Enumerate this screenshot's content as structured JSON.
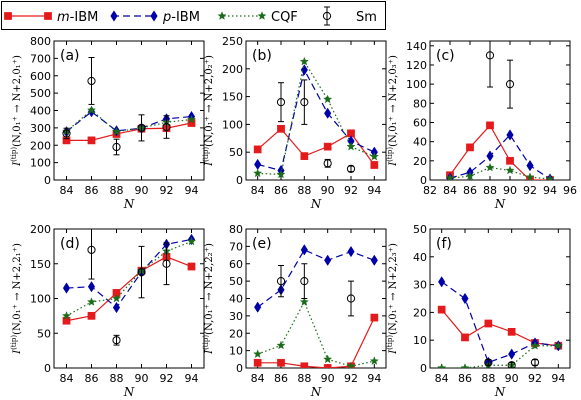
{
  "legend": [
    {
      "label": "m-IBM",
      "label_italic": "m",
      "label_rest": "-IBM",
      "color": "#e41a1c",
      "marker": "square",
      "line": "solid"
    },
    {
      "label": "p-IBM",
      "label_italic": "p",
      "label_rest": "-IBM",
      "color": "#0000aa",
      "marker": "diamond",
      "line": "dashed"
    },
    {
      "label": "CQF",
      "label_italic": "",
      "label_rest": "CQF",
      "color": "#1a6b1a",
      "marker": "star",
      "line": "dotted"
    },
    {
      "label": "Sm",
      "label_italic": "",
      "label_rest": "Sm",
      "color": "#000000",
      "marker": "circle-errorbar",
      "line": "none"
    }
  ],
  "chart_data": [
    {
      "panel": "(a)",
      "type": "line",
      "xlabel": "N",
      "ylabel_main": "I",
      "ylabel_sup": "(tip)",
      "ylabel_arg": "(N,0₁⁺ → N+2,0₁⁺)",
      "xlim": [
        83,
        95
      ],
      "ylim": [
        0,
        800
      ],
      "xticks": [
        84,
        86,
        88,
        90,
        92,
        94
      ],
      "yticks": [
        0,
        100,
        200,
        300,
        400,
        500,
        600,
        700,
        800
      ],
      "series": [
        {
          "name": "m-IBM",
          "x": [
            84,
            86,
            88,
            90,
            92,
            94
          ],
          "y": [
            228,
            228,
            265,
            295,
            298,
            328
          ]
        },
        {
          "name": "p-IBM",
          "x": [
            84,
            86,
            88,
            90,
            92,
            94
          ],
          "y": [
            278,
            393,
            283,
            298,
            352,
            365
          ]
        },
        {
          "name": "CQF",
          "x": [
            84,
            86,
            88,
            90,
            92,
            94
          ],
          "y": [
            280,
            402,
            278,
            300,
            332,
            348
          ]
        },
        {
          "name": "Sm",
          "x": [
            84,
            86,
            88,
            90,
            92
          ],
          "y": [
            268,
            570,
            190,
            300,
            305
          ],
          "err": [
            30,
            135,
            45,
            75,
            65
          ]
        }
      ]
    },
    {
      "panel": "(b)",
      "type": "line",
      "xlabel": "N",
      "ylabel_main": "I",
      "ylabel_sup": "(tip)",
      "ylabel_arg": "(N,0₁⁺ → N+2,0₂⁺)",
      "xlim": [
        83,
        95
      ],
      "ylim": [
        0,
        250
      ],
      "xticks": [
        84,
        86,
        88,
        90,
        92,
        94
      ],
      "yticks": [
        0,
        50,
        100,
        150,
        200,
        250
      ],
      "series": [
        {
          "name": "m-IBM",
          "x": [
            84,
            86,
            88,
            90,
            92,
            94
          ],
          "y": [
            55,
            92,
            43,
            60,
            84,
            27
          ]
        },
        {
          "name": "p-IBM",
          "x": [
            84,
            86,
            88,
            90,
            92,
            94
          ],
          "y": [
            28,
            17,
            198,
            120,
            70,
            50
          ]
        },
        {
          "name": "CQF",
          "x": [
            84,
            86,
            88,
            90,
            92,
            94
          ],
          "y": [
            12,
            10,
            213,
            145,
            60,
            42
          ]
        },
        {
          "name": "Sm",
          "x": [
            86,
            88,
            90,
            92
          ],
          "y": [
            140,
            140,
            30,
            20
          ],
          "err": [
            35,
            40,
            7,
            5
          ]
        }
      ]
    },
    {
      "panel": "(c)",
      "type": "line",
      "xlabel": "N",
      "ylabel_main": "I",
      "ylabel_sup": "(tip)",
      "ylabel_arg": "(N,0₁⁺ → N+2,0₃⁺)",
      "xlim": [
        82,
        96
      ],
      "ylim": [
        0,
        145
      ],
      "xticks": [
        82,
        84,
        86,
        88,
        90,
        92,
        94,
        96
      ],
      "yticks": [
        0,
        20,
        40,
        60,
        80,
        100,
        120,
        140
      ],
      "series": [
        {
          "name": "m-IBM",
          "x": [
            84,
            86,
            88,
            90,
            92,
            94
          ],
          "y": [
            5,
            34,
            57,
            20,
            0,
            0
          ]
        },
        {
          "name": "p-IBM",
          "x": [
            84,
            86,
            88,
            90,
            92,
            94
          ],
          "y": [
            2,
            8,
            25,
            47,
            15,
            1
          ]
        },
        {
          "name": "CQF",
          "x": [
            84,
            86,
            88,
            90,
            92,
            94
          ],
          "y": [
            2,
            4,
            13,
            10,
            3,
            1
          ]
        },
        {
          "name": "Sm",
          "x": [
            88,
            90
          ],
          "y": [
            130,
            100
          ],
          "err": [
            33,
            25
          ]
        }
      ]
    },
    {
      "panel": "(d)",
      "type": "line",
      "xlabel": "N",
      "ylabel_main": "I",
      "ylabel_sup": "(tip)",
      "ylabel_arg": "(N,0₁⁺ → N+2,2₁⁺)",
      "xlim": [
        83,
        95
      ],
      "ylim": [
        0,
        200
      ],
      "xticks": [
        84,
        86,
        88,
        90,
        92,
        94
      ],
      "yticks": [
        0,
        50,
        100,
        150,
        200
      ],
      "series": [
        {
          "name": "m-IBM",
          "x": [
            84,
            86,
            88,
            90,
            92,
            94
          ],
          "y": [
            68,
            75,
            108,
            140,
            160,
            146
          ]
        },
        {
          "name": "p-IBM",
          "x": [
            84,
            86,
            88,
            90,
            92,
            94
          ],
          "y": [
            115,
            117,
            87,
            138,
            178,
            185
          ]
        },
        {
          "name": "CQF",
          "x": [
            84,
            86,
            88,
            90,
            92,
            94
          ],
          "y": [
            75,
            95,
            100,
            140,
            168,
            182
          ]
        },
        {
          "name": "Sm",
          "x": [
            86,
            88,
            90,
            92
          ],
          "y": [
            170,
            40,
            138,
            150
          ],
          "err": [
            42,
            7,
            37,
            30
          ]
        }
      ]
    },
    {
      "panel": "(e)",
      "type": "line",
      "xlabel": "N",
      "ylabel_main": "I",
      "ylabel_sup": "(tip)",
      "ylabel_arg": "(N,0₁⁺ → N+2,2₂⁺)",
      "xlim": [
        83,
        95
      ],
      "ylim": [
        0,
        80
      ],
      "xticks": [
        84,
        86,
        88,
        90,
        92,
        94
      ],
      "yticks": [
        0,
        10,
        20,
        30,
        40,
        50,
        60,
        70,
        80
      ],
      "series": [
        {
          "name": "m-IBM",
          "x": [
            84,
            86,
            88,
            90,
            92,
            94
          ],
          "y": [
            3,
            3,
            1,
            0,
            1,
            29
          ]
        },
        {
          "name": "p-IBM",
          "x": [
            84,
            86,
            88,
            90,
            92,
            94
          ],
          "y": [
            35,
            45,
            68,
            62,
            67,
            62
          ]
        },
        {
          "name": "CQF",
          "x": [
            84,
            86,
            88,
            90,
            92,
            94
          ],
          "y": [
            8,
            13,
            38,
            5,
            1,
            4
          ]
        },
        {
          "name": "Sm",
          "x": [
            86,
            88,
            92
          ],
          "y": [
            50,
            50,
            40
          ],
          "err": [
            9,
            10,
            10
          ]
        }
      ]
    },
    {
      "panel": "(f)",
      "type": "line",
      "xlabel": "N",
      "ylabel_main": "I",
      "ylabel_sup": "(tip)",
      "ylabel_arg": "(N,0₁⁺ → N+2,2₃⁺)",
      "xlim": [
        83,
        95
      ],
      "ylim": [
        0,
        50
      ],
      "xticks": [
        84,
        86,
        88,
        90,
        92,
        94
      ],
      "yticks": [
        0,
        10,
        20,
        30,
        40,
        50
      ],
      "series": [
        {
          "name": "m-IBM",
          "x": [
            84,
            86,
            88,
            90,
            92,
            94
          ],
          "y": [
            21,
            11,
            16,
            13,
            9,
            8
          ]
        },
        {
          "name": "p-IBM",
          "x": [
            84,
            86,
            88,
            90,
            92,
            94
          ],
          "y": [
            31,
            25,
            2,
            5,
            9,
            8
          ]
        },
        {
          "name": "CQF",
          "x": [
            84,
            86,
            88,
            90,
            92,
            94
          ],
          "y": [
            0,
            0,
            1,
            1,
            8,
            8
          ]
        },
        {
          "name": "Sm",
          "x": [
            88,
            90,
            92
          ],
          "y": [
            2,
            1,
            2
          ],
          "err": [
            1,
            1,
            1
          ]
        }
      ]
    }
  ]
}
